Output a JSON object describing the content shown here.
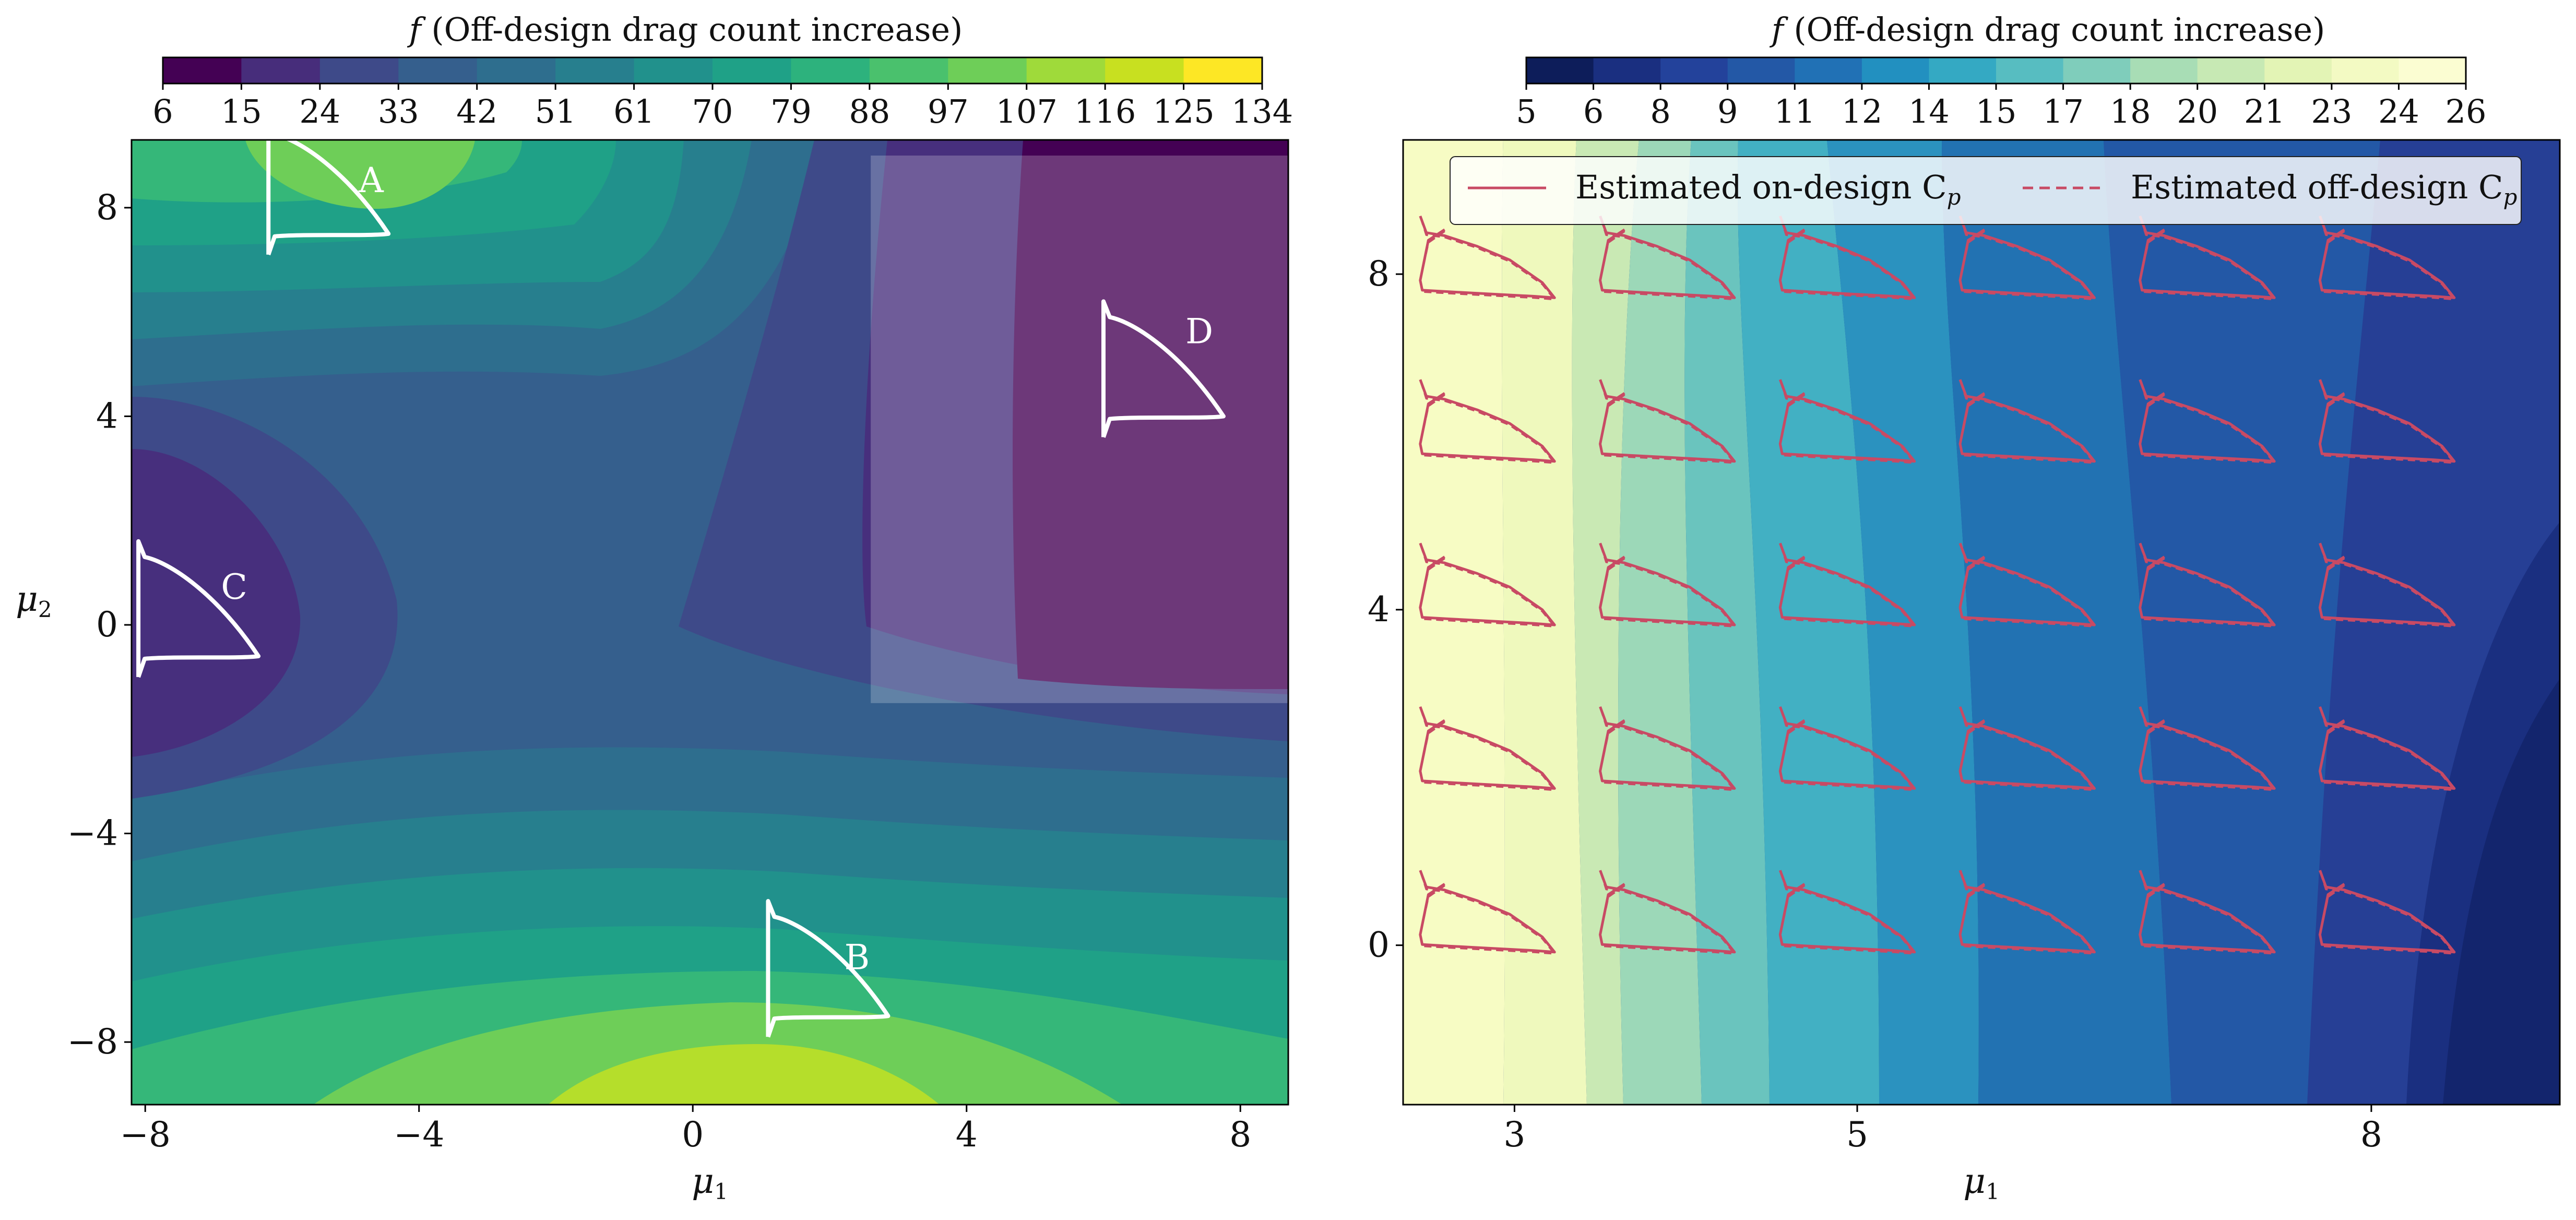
{
  "chart_data": [
    {
      "type": "contour",
      "colorbar": {
        "label_italic": "f",
        "label": "(Off-design drag count increase)",
        "ticks": [
          "6",
          "15",
          "24",
          "33",
          "42",
          "51",
          "61",
          "70",
          "79",
          "88",
          "97",
          "107",
          "116",
          "125",
          "134"
        ],
        "colormap": "viridis"
      },
      "xlabel": "μ",
      "xlabel_sub": "1",
      "ylabel": "μ",
      "ylabel_sub": "2",
      "xlim": [
        -8.2,
        8.7
      ],
      "ylim": [
        -9.2,
        9.3
      ],
      "xticks": [
        -8,
        -4,
        0,
        4,
        8
      ],
      "xtick_labels": [
        "−8",
        "−4",
        "0",
        "4",
        "8"
      ],
      "yticks": [
        -8,
        -4,
        0,
        4,
        8
      ],
      "ytick_labels": [
        "−8",
        "−4",
        "0",
        "4",
        "8"
      ],
      "highlight_region": {
        "x": [
          2.6,
          8.7
        ],
        "y": [
          -1.5,
          9.0
        ]
      },
      "annotations": [
        {
          "label": "A",
          "x": -4.7,
          "y": 8.3
        },
        {
          "label": "B",
          "x": 2.4,
          "y": -6.6
        },
        {
          "label": "C",
          "x": -6.7,
          "y": 0.5
        },
        {
          "label": "D",
          "x": 7.4,
          "y": 5.4
        }
      ],
      "airfoils": [
        {
          "id": "A",
          "x0": -6.2,
          "y0": 7.4
        },
        {
          "id": "B",
          "x0": 1.1,
          "y0": -7.6
        },
        {
          "id": "C",
          "x0": -8.1,
          "y0": -0.7
        },
        {
          "id": "D",
          "x0": 6.0,
          "y0": 3.9
        }
      ]
    },
    {
      "type": "contour",
      "colorbar": {
        "label_italic": "f",
        "label": "(Off-design drag count increase)",
        "ticks": [
          "5",
          "6",
          "8",
          "9",
          "11",
          "12",
          "14",
          "15",
          "17",
          "18",
          "20",
          "21",
          "23",
          "24",
          "26"
        ],
        "colormap": "YlGnBu"
      },
      "xlabel": "μ",
      "xlabel_sub": "1",
      "xlim": [
        2.35,
        9.1
      ],
      "ylim": [
        -1.9,
        9.6
      ],
      "xticks": [
        3,
        5,
        8
      ],
      "xtick_labels": [
        "3",
        "5",
        "8"
      ],
      "yticks": [
        0,
        4,
        8
      ],
      "ytick_labels": [
        "0",
        "4",
        "8"
      ],
      "legend": {
        "position": "top",
        "entries": [
          {
            "label": "Estimated on-design C",
            "sub": "p",
            "style": "solid"
          },
          {
            "label": "Estimated off-design C",
            "sub": "p",
            "style": "dashed"
          }
        ]
      },
      "series_color": "#c84a64",
      "grid_x": [
        2.45,
        3.5,
        4.55,
        5.6,
        6.65,
        7.7
      ],
      "grid_y": [
        0.0,
        1.95,
        3.9,
        5.85,
        7.8
      ]
    }
  ]
}
